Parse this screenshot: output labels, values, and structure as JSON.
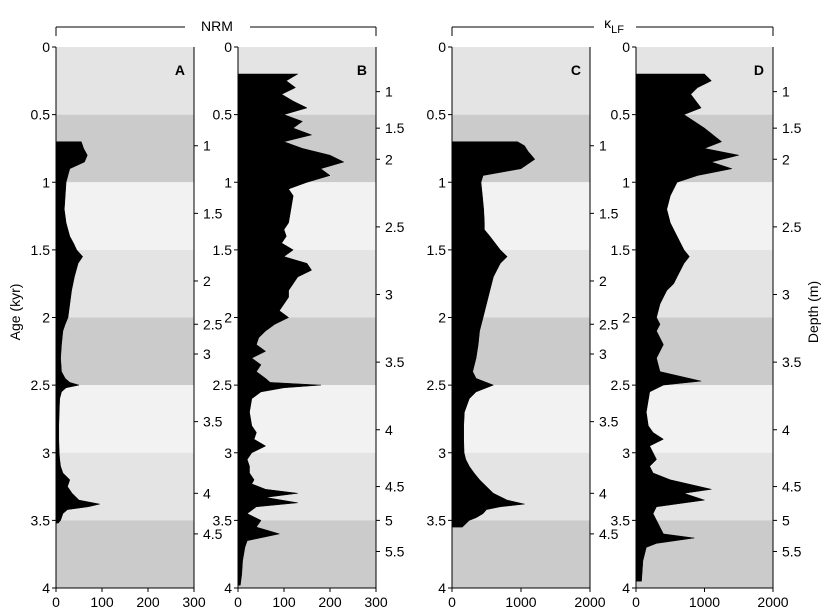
{
  "figure": {
    "group_labels": {
      "nrm": "NRM",
      "klf": "κ",
      "klf_sub": "LF"
    },
    "ylabel_left": "Age (kyr)",
    "ylabel_right": "Depth (m)"
  },
  "chart_data": [
    {
      "panel": "A",
      "type": "area",
      "group": "NRM",
      "ylabel": "Age (kyr)",
      "ylim": [
        0,
        4
      ],
      "xlim": [
        0,
        300
      ],
      "xticks": [
        "0",
        "100",
        "200",
        "300"
      ],
      "yticks": [
        "0",
        "0.5",
        "1",
        "1.5",
        "2",
        "2.5",
        "3",
        "3.5",
        "4"
      ],
      "depth_ticks": [
        {
          "label": "1",
          "age": 0.73
        },
        {
          "label": "1.5",
          "age": 1.23
        },
        {
          "label": "2",
          "age": 1.73
        },
        {
          "label": "2.5",
          "age": 2.05
        },
        {
          "label": "3",
          "age": 2.27
        },
        {
          "label": "3.5",
          "age": 2.77
        },
        {
          "label": "4",
          "age": 3.3
        },
        {
          "label": "4.5",
          "age": 3.6
        }
      ],
      "bands": [
        {
          "from": 0,
          "to": 0.5,
          "shade": "#e4e4e4"
        },
        {
          "from": 0.5,
          "to": 1.0,
          "shade": "#cbcbcb"
        },
        {
          "from": 1.0,
          "to": 1.5,
          "shade": "#f2f2f2"
        },
        {
          "from": 1.5,
          "to": 2.0,
          "shade": "#e4e4e4"
        },
        {
          "from": 2.0,
          "to": 2.5,
          "shade": "#cbcbcb"
        },
        {
          "from": 2.5,
          "to": 3.0,
          "shade": "#f2f2f2"
        },
        {
          "from": 3.0,
          "to": 3.5,
          "shade": "#e4e4e4"
        },
        {
          "from": 3.5,
          "to": 4.0,
          "shade": "#cbcbcb"
        }
      ],
      "x": [
        55,
        60,
        68,
        62,
        30,
        22,
        20,
        18,
        22,
        30,
        38,
        45,
        58,
        48,
        40,
        34,
        30,
        26,
        20,
        15,
        12,
        10,
        12,
        20,
        30,
        50,
        22,
        12,
        8,
        7,
        6,
        6,
        7,
        8,
        10,
        15,
        30,
        25,
        35,
        50,
        95,
        70,
        25,
        15,
        10,
        5
      ],
      "y": [
        0.7,
        0.75,
        0.8,
        0.85,
        0.9,
        1.0,
        1.1,
        1.2,
        1.3,
        1.4,
        1.45,
        1.5,
        1.55,
        1.6,
        1.7,
        1.8,
        1.9,
        2.0,
        2.05,
        2.1,
        2.2,
        2.3,
        2.4,
        2.45,
        2.48,
        2.5,
        2.52,
        2.55,
        2.6,
        2.7,
        2.8,
        2.9,
        3.0,
        3.05,
        3.1,
        3.15,
        3.2,
        3.25,
        3.3,
        3.35,
        3.38,
        3.4,
        3.42,
        3.45,
        3.5,
        3.52
      ]
    },
    {
      "panel": "B",
      "type": "area",
      "group": "NRM",
      "ylim": [
        0,
        4
      ],
      "xlim": [
        0,
        300
      ],
      "xticks": [
        "0",
        "100",
        "200",
        "300"
      ],
      "yticks": [
        "0",
        "0.5",
        "1",
        "1.5",
        "2",
        "2.5",
        "3",
        "3.5",
        "4"
      ],
      "depth_ticks": [
        {
          "label": "1",
          "age": 0.33
        },
        {
          "label": "1.5",
          "age": 0.6
        },
        {
          "label": "2",
          "age": 0.83
        },
        {
          "label": "2.5",
          "age": 1.33
        },
        {
          "label": "3",
          "age": 1.83
        },
        {
          "label": "3.5",
          "age": 2.33
        },
        {
          "label": "4",
          "age": 2.83
        },
        {
          "label": "4.5",
          "age": 3.25
        },
        {
          "label": "5",
          "age": 3.5
        },
        {
          "label": "5.5",
          "age": 3.73
        }
      ],
      "bands": [
        {
          "from": 0,
          "to": 0.5,
          "shade": "#e4e4e4"
        },
        {
          "from": 0.5,
          "to": 1.0,
          "shade": "#cbcbcb"
        },
        {
          "from": 1.0,
          "to": 1.5,
          "shade": "#f2f2f2"
        },
        {
          "from": 1.5,
          "to": 2.0,
          "shade": "#e4e4e4"
        },
        {
          "from": 2.0,
          "to": 2.5,
          "shade": "#cbcbcb"
        },
        {
          "from": 2.5,
          "to": 3.0,
          "shade": "#f2f2f2"
        },
        {
          "from": 3.0,
          "to": 3.5,
          "shade": "#e4e4e4"
        },
        {
          "from": 3.5,
          "to": 4.0,
          "shade": "#cbcbcb"
        }
      ],
      "x": [
        130,
        105,
        125,
        95,
        120,
        150,
        100,
        140,
        120,
        160,
        100,
        140,
        200,
        230,
        180,
        200,
        150,
        110,
        120,
        115,
        110,
        100,
        105,
        95,
        120,
        100,
        150,
        160,
        130,
        120,
        110,
        110,
        100,
        90,
        110,
        80,
        60,
        45,
        40,
        60,
        30,
        50,
        40,
        60,
        70,
        180,
        100,
        50,
        30,
        25,
        30,
        40,
        35,
        60,
        30,
        20,
        25,
        25,
        35,
        30,
        60,
        130,
        60,
        130,
        40,
        20,
        50,
        40,
        90,
        20,
        15,
        10,
        8,
        5
      ],
      "y": [
        0.2,
        0.25,
        0.3,
        0.35,
        0.4,
        0.45,
        0.5,
        0.55,
        0.6,
        0.65,
        0.7,
        0.75,
        0.8,
        0.85,
        0.9,
        0.95,
        1.0,
        1.05,
        1.1,
        1.2,
        1.3,
        1.35,
        1.4,
        1.45,
        1.5,
        1.55,
        1.6,
        1.65,
        1.7,
        1.75,
        1.8,
        1.85,
        1.9,
        1.95,
        2.0,
        2.05,
        2.1,
        2.15,
        2.2,
        2.25,
        2.3,
        2.35,
        2.4,
        2.45,
        2.48,
        2.5,
        2.52,
        2.55,
        2.6,
        2.7,
        2.8,
        2.85,
        2.9,
        2.95,
        3.0,
        3.05,
        3.1,
        3.15,
        3.2,
        3.23,
        3.27,
        3.3,
        3.33,
        3.37,
        3.4,
        3.45,
        3.5,
        3.55,
        3.6,
        3.65,
        3.7,
        3.8,
        3.9,
        3.98
      ]
    },
    {
      "panel": "C",
      "type": "area",
      "group": "κLF",
      "ylim": [
        0,
        4
      ],
      "xlim": [
        0,
        2000
      ],
      "xticks": [
        "0",
        "1000",
        "2000"
      ],
      "yticks": [
        "0",
        "0.5",
        "1",
        "1.5",
        "2",
        "2.5",
        "3",
        "3.5",
        "4"
      ],
      "depth_ticks": [
        {
          "label": "1",
          "age": 0.73
        },
        {
          "label": "1.5",
          "age": 1.23
        },
        {
          "label": "2",
          "age": 1.73
        },
        {
          "label": "2.5",
          "age": 2.05
        },
        {
          "label": "3",
          "age": 2.27
        },
        {
          "label": "3.5",
          "age": 2.77
        },
        {
          "label": "4",
          "age": 3.3
        },
        {
          "label": "4.5",
          "age": 3.6
        }
      ],
      "bands": [
        {
          "from": 0,
          "to": 0.5,
          "shade": "#e4e4e4"
        },
        {
          "from": 0.5,
          "to": 1.0,
          "shade": "#cbcbcb"
        },
        {
          "from": 1.0,
          "to": 1.5,
          "shade": "#f2f2f2"
        },
        {
          "from": 1.5,
          "to": 2.0,
          "shade": "#e4e4e4"
        },
        {
          "from": 2.0,
          "to": 2.5,
          "shade": "#cbcbcb"
        },
        {
          "from": 2.5,
          "to": 3.0,
          "shade": "#f2f2f2"
        },
        {
          "from": 3.0,
          "to": 3.5,
          "shade": "#e4e4e4"
        },
        {
          "from": 3.5,
          "to": 4.0,
          "shade": "#cbcbcb"
        }
      ],
      "x": [
        950,
        1050,
        1100,
        1200,
        1000,
        450,
        420,
        440,
        460,
        470,
        470,
        550,
        700,
        800,
        700,
        600,
        550,
        500,
        450,
        400,
        380,
        350,
        300,
        350,
        600,
        350,
        250,
        180,
        170,
        170,
        175,
        200,
        250,
        320,
        400,
        500,
        600,
        800,
        1050,
        700,
        500,
        450,
        350,
        250,
        150
      ],
      "y": [
        0.7,
        0.73,
        0.77,
        0.83,
        0.9,
        0.95,
        1.0,
        1.1,
        1.2,
        1.3,
        1.35,
        1.4,
        1.5,
        1.55,
        1.6,
        1.7,
        1.8,
        1.9,
        2.0,
        2.1,
        2.2,
        2.3,
        2.4,
        2.45,
        2.5,
        2.55,
        2.6,
        2.7,
        2.8,
        2.9,
        3.0,
        3.05,
        3.1,
        3.15,
        3.2,
        3.25,
        3.3,
        3.35,
        3.38,
        3.4,
        3.42,
        3.45,
        3.48,
        3.5,
        3.55
      ]
    },
    {
      "panel": "D",
      "type": "area",
      "group": "κLF",
      "ylim": [
        0,
        4
      ],
      "xlim": [
        0,
        2000
      ],
      "xticks": [
        "0",
        "1000",
        "2000"
      ],
      "yticks": [
        "0",
        "0.5",
        "1",
        "1.5",
        "2",
        "2.5",
        "3",
        "3.5",
        "4"
      ],
      "depth_ticks": [
        {
          "label": "1",
          "age": 0.33
        },
        {
          "label": "1.5",
          "age": 0.6
        },
        {
          "label": "2",
          "age": 0.83
        },
        {
          "label": "2.5",
          "age": 1.33
        },
        {
          "label": "3",
          "age": 1.83
        },
        {
          "label": "3.5",
          "age": 2.33
        },
        {
          "label": "4",
          "age": 2.83
        },
        {
          "label": "4.5",
          "age": 3.25
        },
        {
          "label": "5",
          "age": 3.5
        },
        {
          "label": "5.5",
          "age": 3.73
        }
      ],
      "bands": [
        {
          "from": 0,
          "to": 0.5,
          "shade": "#e4e4e4"
        },
        {
          "from": 0.5,
          "to": 1.0,
          "shade": "#cbcbcb"
        },
        {
          "from": 1.0,
          "to": 1.5,
          "shade": "#f2f2f2"
        },
        {
          "from": 1.5,
          "to": 2.0,
          "shade": "#e4e4e4"
        },
        {
          "from": 2.0,
          "to": 2.5,
          "shade": "#cbcbcb"
        },
        {
          "from": 2.5,
          "to": 3.0,
          "shade": "#f2f2f2"
        },
        {
          "from": 3.0,
          "to": 3.5,
          "shade": "#e4e4e4"
        },
        {
          "from": 3.5,
          "to": 4.0,
          "shade": "#cbcbcb"
        }
      ],
      "x": [
        1000,
        1100,
        900,
        800,
        950,
        700,
        1000,
        1250,
        1000,
        1500,
        1100,
        1400,
        900,
        600,
        500,
        450,
        500,
        600,
        700,
        780,
        700,
        600,
        550,
        450,
        400,
        350,
        300,
        350,
        300,
        400,
        300,
        350,
        950,
        400,
        200,
        150,
        180,
        250,
        400,
        200,
        300,
        200,
        250,
        500,
        1100,
        700,
        1000,
        300,
        250,
        400,
        850,
        300,
        150,
        100,
        80
      ],
      "y": [
        0.2,
        0.25,
        0.3,
        0.35,
        0.45,
        0.5,
        0.6,
        0.7,
        0.75,
        0.8,
        0.85,
        0.9,
        0.95,
        1.0,
        1.1,
        1.2,
        1.3,
        1.4,
        1.5,
        1.55,
        1.6,
        1.7,
        1.75,
        1.8,
        1.85,
        1.9,
        2.0,
        2.05,
        2.1,
        2.2,
        2.3,
        2.4,
        2.47,
        2.5,
        2.55,
        2.7,
        2.8,
        2.85,
        2.9,
        2.95,
        3.05,
        3.1,
        3.15,
        3.2,
        3.27,
        3.3,
        3.35,
        3.4,
        3.45,
        3.6,
        3.63,
        3.67,
        3.7,
        3.8,
        3.95
      ]
    }
  ]
}
